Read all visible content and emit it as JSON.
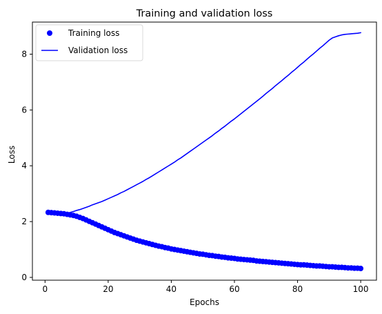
{
  "chart_data": {
    "type": "line",
    "title": "Training and validation loss",
    "xlabel": "Epochs",
    "ylabel": "Loss",
    "xlim": [
      -4,
      105
    ],
    "ylim": [
      -0.1,
      9.15
    ],
    "xticks": [
      0,
      20,
      40,
      60,
      80,
      100
    ],
    "yticks": [
      0,
      2,
      4,
      6,
      8
    ],
    "grid": false,
    "legend_position": "upper-left",
    "series": [
      {
        "name": "Training loss",
        "style": "markers",
        "color": "#0000ff",
        "x": [
          1,
          2,
          3,
          4,
          5,
          6,
          7,
          8,
          9,
          10,
          11,
          12,
          13,
          14,
          15,
          16,
          17,
          18,
          19,
          20,
          21,
          22,
          23,
          24,
          25,
          26,
          27,
          28,
          29,
          30,
          31,
          32,
          33,
          34,
          35,
          36,
          37,
          38,
          39,
          40,
          41,
          42,
          43,
          44,
          45,
          46,
          47,
          48,
          49,
          50,
          51,
          52,
          53,
          54,
          55,
          56,
          57,
          58,
          59,
          60,
          61,
          62,
          63,
          64,
          65,
          66,
          67,
          68,
          69,
          70,
          71,
          72,
          73,
          74,
          75,
          76,
          77,
          78,
          79,
          80,
          81,
          82,
          83,
          84,
          85,
          86,
          87,
          88,
          89,
          90,
          91,
          92,
          93,
          94,
          95,
          96,
          97,
          98,
          99,
          100
        ],
        "y": [
          2.33,
          2.32,
          2.31,
          2.3,
          2.29,
          2.28,
          2.26,
          2.24,
          2.22,
          2.19,
          2.15,
          2.11,
          2.06,
          2.01,
          1.96,
          1.91,
          1.86,
          1.81,
          1.76,
          1.71,
          1.66,
          1.61,
          1.57,
          1.53,
          1.49,
          1.45,
          1.41,
          1.37,
          1.33,
          1.3,
          1.27,
          1.24,
          1.21,
          1.18,
          1.15,
          1.12,
          1.1,
          1.07,
          1.05,
          1.02,
          1.0,
          0.98,
          0.96,
          0.94,
          0.92,
          0.9,
          0.88,
          0.86,
          0.84,
          0.83,
          0.81,
          0.79,
          0.78,
          0.76,
          0.75,
          0.73,
          0.72,
          0.7,
          0.69,
          0.68,
          0.66,
          0.65,
          0.64,
          0.63,
          0.62,
          0.61,
          0.59,
          0.58,
          0.57,
          0.56,
          0.55,
          0.54,
          0.53,
          0.52,
          0.51,
          0.5,
          0.49,
          0.48,
          0.47,
          0.46,
          0.45,
          0.45,
          0.44,
          0.43,
          0.42,
          0.41,
          0.41,
          0.4,
          0.39,
          0.38,
          0.38,
          0.37,
          0.36,
          0.36,
          0.35,
          0.34,
          0.34,
          0.33,
          0.33,
          0.32
        ]
      },
      {
        "name": "Validation loss",
        "style": "line",
        "color": "#0000ff",
        "x": [
          1,
          2,
          3,
          4,
          5,
          6,
          7,
          8,
          9,
          10,
          11,
          12,
          13,
          14,
          15,
          16,
          17,
          18,
          19,
          20,
          21,
          22,
          23,
          24,
          25,
          26,
          27,
          28,
          29,
          30,
          31,
          32,
          33,
          34,
          35,
          36,
          37,
          38,
          39,
          40,
          41,
          42,
          43,
          44,
          45,
          46,
          47,
          48,
          49,
          50,
          51,
          52,
          53,
          54,
          55,
          56,
          57,
          58,
          59,
          60,
          61,
          62,
          63,
          64,
          65,
          66,
          67,
          68,
          69,
          70,
          71,
          72,
          73,
          74,
          75,
          76,
          77,
          78,
          79,
          80,
          81,
          82,
          83,
          84,
          85,
          86,
          87,
          88,
          89,
          90,
          91,
          92,
          93,
          94,
          95,
          96,
          97,
          98,
          99,
          100
        ],
        "y": [
          2.31,
          2.28,
          2.27,
          2.27,
          2.27,
          2.28,
          2.3,
          2.33,
          2.36,
          2.4,
          2.43,
          2.47,
          2.51,
          2.55,
          2.6,
          2.64,
          2.68,
          2.72,
          2.77,
          2.82,
          2.87,
          2.92,
          2.97,
          3.03,
          3.08,
          3.14,
          3.2,
          3.26,
          3.32,
          3.38,
          3.44,
          3.51,
          3.57,
          3.64,
          3.71,
          3.78,
          3.85,
          3.92,
          3.99,
          4.06,
          4.13,
          4.21,
          4.28,
          4.36,
          4.44,
          4.52,
          4.6,
          4.68,
          4.76,
          4.84,
          4.92,
          5.0,
          5.08,
          5.17,
          5.25,
          5.34,
          5.42,
          5.51,
          5.6,
          5.68,
          5.77,
          5.86,
          5.95,
          6.04,
          6.13,
          6.22,
          6.31,
          6.4,
          6.49,
          6.59,
          6.68,
          6.77,
          6.87,
          6.96,
          7.05,
          7.15,
          7.24,
          7.34,
          7.43,
          7.53,
          7.63,
          7.72,
          7.82,
          7.92,
          8.01,
          8.11,
          8.21,
          8.3,
          8.4,
          8.5,
          8.58,
          8.62,
          8.66,
          8.69,
          8.71,
          8.72,
          8.73,
          8.74,
          8.75,
          8.77
        ]
      }
    ]
  }
}
